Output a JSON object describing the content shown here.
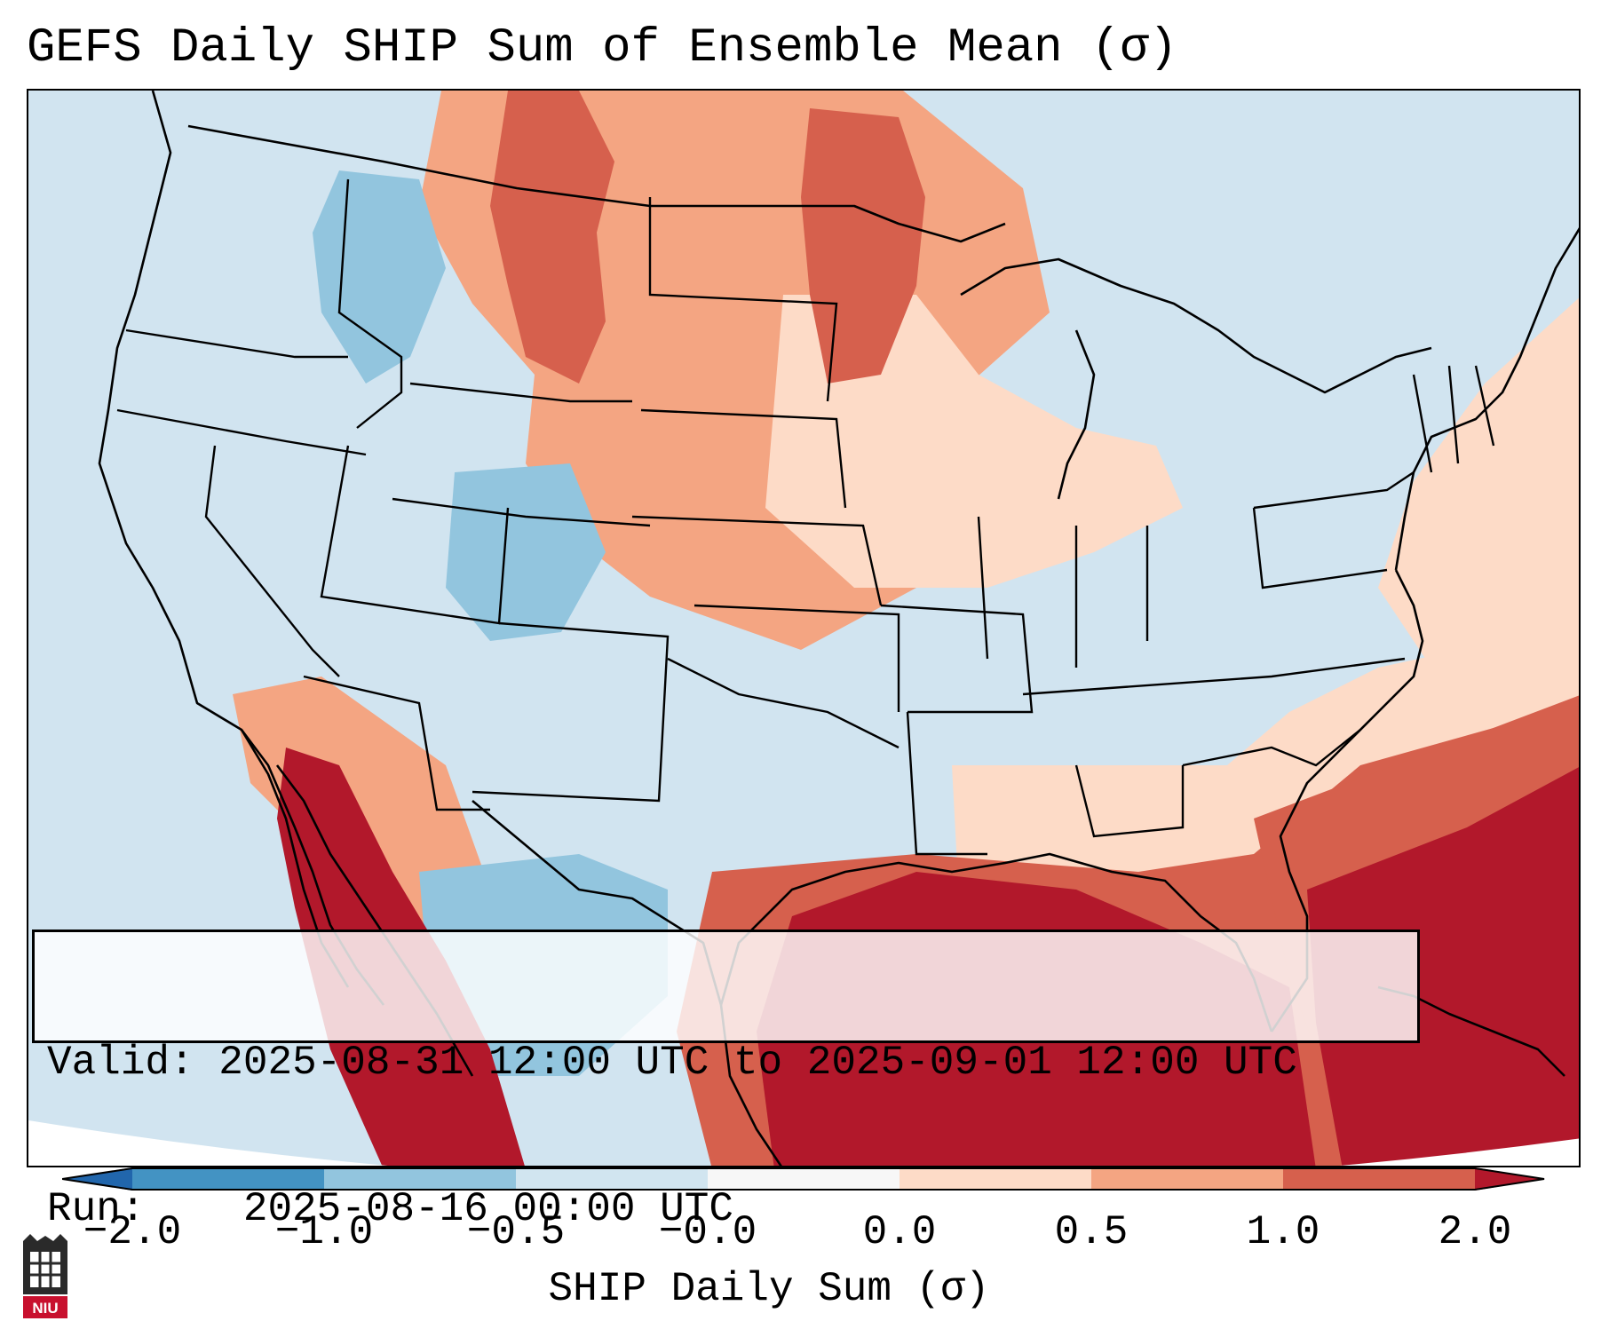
{
  "title": "GEFS Daily SHIP Sum of Ensemble Mean (σ)",
  "info_box": {
    "valid_label": "Valid:",
    "valid_text": "2025-08-31 12:00 UTC to 2025-09-01 12:00 UTC",
    "run_label": "Run:",
    "run_text": "2025-08-16 00:00 UTC"
  },
  "colorbar": {
    "label": "SHIP Daily Sum (σ)",
    "ticks": [
      "−2.0",
      "−1.0",
      "−0.5",
      "−0.0",
      "0.0",
      "0.5",
      "1.0",
      "2.0"
    ],
    "segment_colors": [
      "#4393c3",
      "#92c5de",
      "#d1e5f0",
      "#f7f7f7",
      "#fddbc7",
      "#f4a582",
      "#d6604d"
    ],
    "extend_low_color": "#2166ac",
    "extend_high_color": "#b2182b"
  },
  "map": {
    "background_color": "#d1e4f0",
    "regions": [
      {
        "name": "northern-plains",
        "anomaly": 0.75,
        "color": "#f4a582"
      },
      {
        "name": "upper-midwest",
        "anomaly": 0.25,
        "color": "#fddbc7"
      },
      {
        "name": "montana-core",
        "anomaly": 1.2,
        "color": "#d6604d"
      },
      {
        "name": "minnesota-core",
        "anomaly": 1.1,
        "color": "#d6604d"
      },
      {
        "name": "new-england-canada",
        "anomaly": 0.3,
        "color": "#fddbc7"
      },
      {
        "name": "southeast-coast",
        "anomaly": 0.3,
        "color": "#fddbc7"
      },
      {
        "name": "gulf-of-mexico",
        "anomaly": 2.2,
        "color": "#b2182b"
      },
      {
        "name": "gulf-fringe",
        "anomaly": 1.3,
        "color": "#d6604d"
      },
      {
        "name": "atlantic-subtropics",
        "anomaly": 1.2,
        "color": "#d6604d"
      },
      {
        "name": "atlantic-core",
        "anomaly": 2.1,
        "color": "#b2182b"
      },
      {
        "name": "gulf-of-california",
        "anomaly": 2.1,
        "color": "#b2182b"
      },
      {
        "name": "sonora-fringe",
        "anomaly": 0.8,
        "color": "#f4a582"
      },
      {
        "name": "central-mexico",
        "anomaly": -0.7,
        "color": "#92c5de"
      },
      {
        "name": "colorado-utah",
        "anomaly": -0.6,
        "color": "#92c5de"
      },
      {
        "name": "pacific-northwest-interior",
        "anomaly": -0.6,
        "color": "#92c5de"
      }
    ],
    "logo_text": "NIU"
  }
}
